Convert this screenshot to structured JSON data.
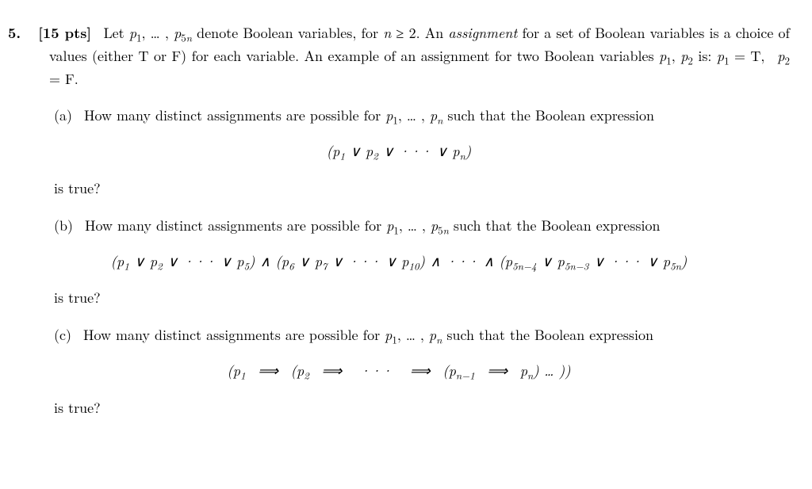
{
  "question_number": "5.",
  "points": "[15 pts]",
  "intro_html": "Let <span class='it'>p</span><sub>1</sub>, … , <span class='it'>p</span><sub>5<span class='it'>n</span></sub> denote Boolean variables, for <span class='it'>n</span> ≥ 2. An <span class='it'>assignment</span> for a set of Boolean variables is a choice of values (either T or F) for each variable. An example of an assignment for two Boolean variables <span class='it'>p</span><sub>1</sub>, <span class='it'>p</span><sub>2</sub> is: <span class='it'>p</span><sub>1</sub> = T,&nbsp; <span class='it'>p</span><sub>2</sub> = F.",
  "parts": [
    {
      "label": "(a)",
      "text_html": "How many distinct assignments are possible for <span class='it'>p</span><sub>1</sub>, … , <span class='it'>p<sub>n</sub></span> such that the Boolean expression",
      "equation_html": "(<span class='it'>p</span><sub>1</sub> ∨ <span class='it'>p</span><sub>2</sub> ∨ ··· ∨ <span class='it'>p<sub>n</sub></span>)",
      "tail": "is true?"
    },
    {
      "label": "(b)",
      "text_html": "How many distinct assignments are possible for <span class='it'>p</span><sub>1</sub>, … , <span class='it'>p</span><sub>5<span class='it'>n</span></sub> such that the Boolean expression",
      "equation_html": "(<span class='it'>p</span><sub>1</sub> ∨ <span class='it'>p</span><sub>2</sub> ∨ ··· ∨ <span class='it'>p</span><sub>5</sub>) ∧ (<span class='it'>p</span><sub>6</sub> ∨ <span class='it'>p</span><sub>7</sub> ∨ ··· ∨ <span class='it'>p</span><sub>10</sub>) ∧ ··· ∧ (<span class='it'>p</span><sub>5<span class='it'>n</span>−4</sub> ∨ <span class='it'>p</span><sub>5<span class='it'>n</span>−3</sub> ∨ ··· ∨ <span class='it'>p</span><sub>5<span class='it'>n</span></sub>)",
      "tail": "is true?"
    },
    {
      "label": "(c)",
      "text_html": "How many distinct assignments are possible for <span class='it'>p</span><sub>1</sub>, … , <span class='it'>p<sub>n</sub></span> such that the Boolean expression",
      "equation_html": "(<span class='it'>p</span><sub>1</sub>&nbsp; ⟹ &nbsp;(<span class='it'>p</span><sub>2</sub>&nbsp; ⟹ &nbsp; ··· &nbsp; ⟹ &nbsp;(<span class='it'>p</span><sub><span class='it'>n</span>−1</sub>&nbsp; ⟹ &nbsp;<span class='it'>p<sub>n</sub></span>) … ))",
      "tail": "is true?"
    }
  ],
  "colors": {
    "text": "#000000",
    "background": "#ffffff"
  },
  "typography": {
    "body_fontsize_pt": 14,
    "equation_style": "italic",
    "bold_parts": [
      "question_number",
      "points"
    ]
  }
}
